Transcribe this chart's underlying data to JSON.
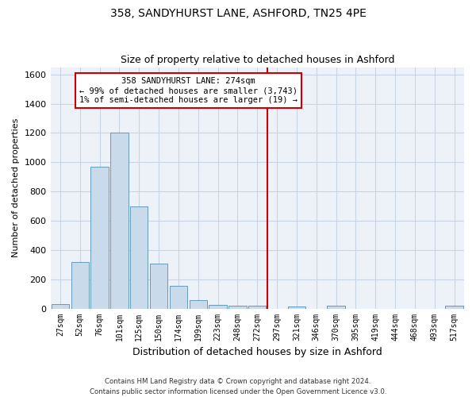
{
  "title1": "358, SANDYHURST LANE, ASHFORD, TN25 4PE",
  "title2": "Size of property relative to detached houses in Ashford",
  "xlabel": "Distribution of detached houses by size in Ashford",
  "ylabel": "Number of detached properties",
  "footnote1": "Contains HM Land Registry data © Crown copyright and database right 2024.",
  "footnote2": "Contains public sector information licensed under the Open Government Licence v3.0.",
  "bar_labels": [
    "27sqm",
    "52sqm",
    "76sqm",
    "101sqm",
    "125sqm",
    "150sqm",
    "174sqm",
    "199sqm",
    "223sqm",
    "248sqm",
    "272sqm",
    "297sqm",
    "321sqm",
    "346sqm",
    "370sqm",
    "395sqm",
    "419sqm",
    "444sqm",
    "468sqm",
    "493sqm",
    "517sqm"
  ],
  "bar_values": [
    30,
    320,
    970,
    1200,
    700,
    305,
    155,
    60,
    25,
    20,
    20,
    0,
    15,
    0,
    20,
    0,
    0,
    0,
    0,
    0,
    20
  ],
  "bar_color": "#c9daea",
  "bar_edge_color": "#6699bb",
  "grid_color": "#c8d4e4",
  "bg_color": "#edf2f9",
  "vline_x_index": 10,
  "vline_color": "#cc0000",
  "annotation_line1": "358 SANDYHURST LANE: 274sqm",
  "annotation_line2": "← 99% of detached houses are smaller (3,743)",
  "annotation_line3": "1% of semi-detached houses are larger (19) →",
  "annotation_box_color": "#cc0000",
  "ylim": [
    0,
    1650
  ],
  "yticks": [
    0,
    200,
    400,
    600,
    800,
    1000,
    1200,
    1400,
    1600
  ]
}
